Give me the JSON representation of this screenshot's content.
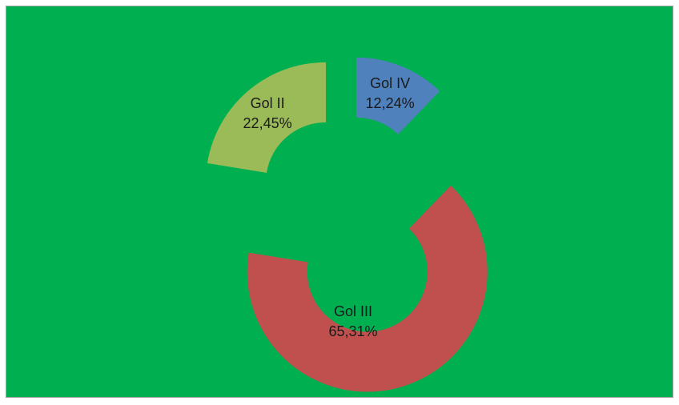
{
  "chart_data": {
    "type": "donut",
    "categories": [
      "Gol IV",
      "Gol III",
      "Gol II"
    ],
    "values": [
      12.24,
      65.31,
      22.45
    ],
    "value_labels": [
      "12,24%",
      "65,31%",
      "22,45%"
    ],
    "colors": [
      "#4f81bd",
      "#c0504d",
      "#9bbb59"
    ],
    "background": "#00b050"
  }
}
